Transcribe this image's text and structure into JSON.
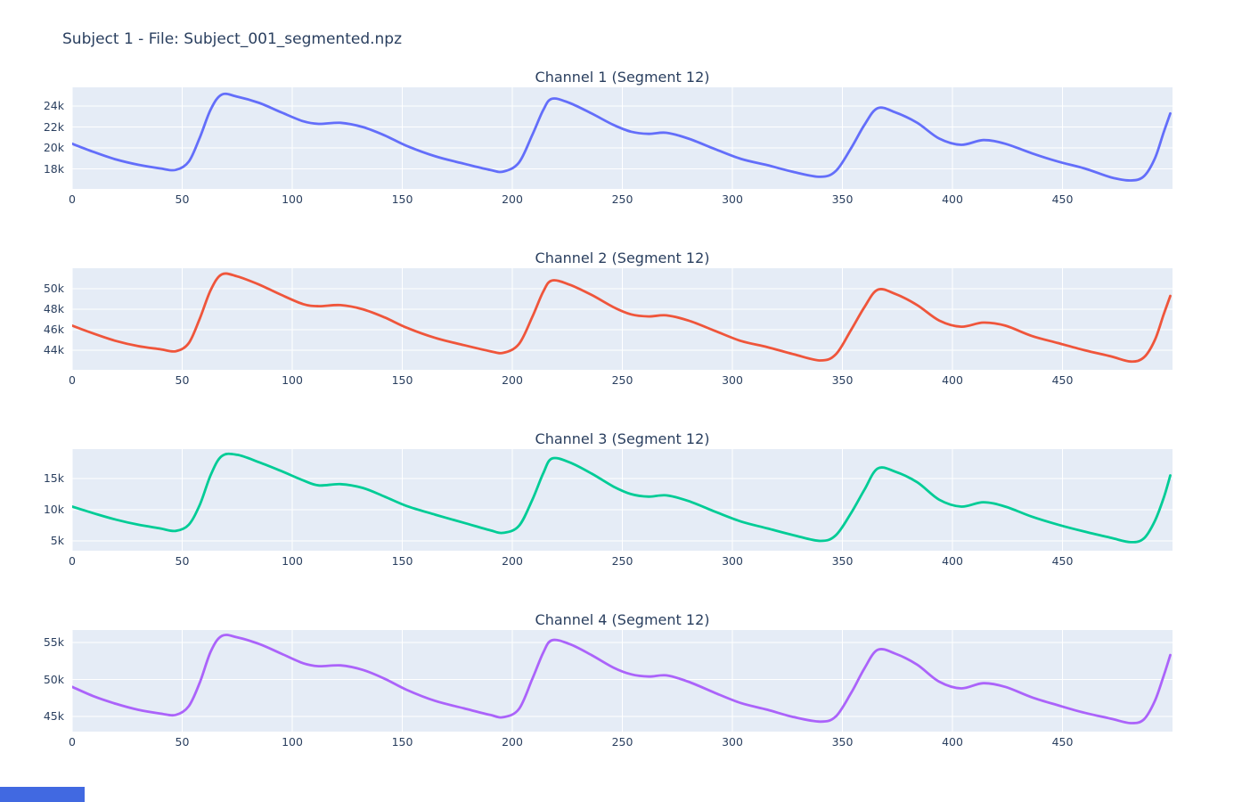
{
  "page": {
    "title": "Subject 1 - File: Subject_001_segmented.npz",
    "background": "#ffffff",
    "text_color": "#2a3f5f"
  },
  "theme": {
    "plot_bg": "#e5ecf6",
    "grid_color": "#ffffff",
    "tick_color": "#2a3f5f"
  },
  "status_bubble": {
    "color": "#4169e1"
  },
  "chart_data": [
    {
      "type": "line",
      "title": "Channel 1 (Segment 12)",
      "line_color": "#636efa",
      "x_range": [
        0,
        500
      ],
      "y_range": [
        16090,
        25790
      ],
      "x_tick_vals": [
        0,
        50,
        100,
        150,
        200,
        250,
        300,
        350,
        400,
        450
      ],
      "x_tick_labels": [
        "0",
        "50",
        "100",
        "150",
        "200",
        "250",
        "300",
        "350",
        "400",
        "450"
      ],
      "y_tick_vals": [
        18000,
        20000,
        22000,
        24000
      ],
      "y_tick_labels": [
        "18k",
        "20k",
        "22k",
        "24k"
      ],
      "x": [
        0,
        10,
        20,
        30,
        40,
        47,
        53,
        58,
        63,
        68,
        75,
        85,
        95,
        105,
        112,
        122,
        132,
        142,
        152,
        165,
        178,
        190,
        196,
        203,
        209,
        214,
        218,
        226,
        236,
        246,
        254,
        262,
        270,
        280,
        292,
        304,
        316,
        328,
        340,
        347,
        354,
        360,
        366,
        374,
        384,
        394,
        404,
        414,
        424,
        436,
        448,
        460,
        472,
        481,
        487,
        492,
        496,
        499
      ],
      "y": [
        20400,
        19600,
        18900,
        18400,
        18050,
        17900,
        18700,
        21000,
        23700,
        25100,
        24900,
        24300,
        23400,
        22550,
        22300,
        22400,
        22000,
        21200,
        20200,
        19200,
        18500,
        17900,
        17750,
        18600,
        21200,
        23600,
        24700,
        24300,
        23300,
        22200,
        21550,
        21350,
        21450,
        20900,
        19900,
        18950,
        18350,
        17700,
        17250,
        17800,
        20000,
        22200,
        23800,
        23400,
        22400,
        20900,
        20300,
        20750,
        20400,
        19500,
        18700,
        18050,
        17200,
        16900,
        17300,
        19000,
        21500,
        23300
      ]
    },
    {
      "type": "line",
      "title": "Channel 2 (Segment 12)",
      "line_color": "#ef553b",
      "x_range": [
        0,
        500
      ],
      "y_range": [
        42090,
        52000
      ],
      "x_tick_vals": [
        0,
        50,
        100,
        150,
        200,
        250,
        300,
        350,
        400,
        450
      ],
      "x_tick_labels": [
        "0",
        "50",
        "100",
        "150",
        "200",
        "250",
        "300",
        "350",
        "400",
        "450"
      ],
      "y_tick_vals": [
        44000,
        46000,
        48000,
        50000
      ],
      "y_tick_labels": [
        "44k",
        "46k",
        "48k",
        "50k"
      ],
      "x": [
        0,
        10,
        20,
        30,
        40,
        47,
        53,
        58,
        63,
        68,
        75,
        85,
        95,
        105,
        112,
        122,
        132,
        142,
        152,
        165,
        178,
        190,
        196,
        203,
        209,
        214,
        218,
        226,
        236,
        246,
        254,
        262,
        270,
        280,
        292,
        304,
        316,
        328,
        340,
        347,
        354,
        360,
        366,
        374,
        384,
        394,
        404,
        414,
        424,
        436,
        448,
        460,
        472,
        481,
        487,
        492,
        496,
        499
      ],
      "y": [
        46400,
        45600,
        44900,
        44400,
        44100,
        43900,
        44700,
        47100,
        49900,
        51400,
        51200,
        50400,
        49400,
        48500,
        48300,
        48400,
        48000,
        47200,
        46200,
        45200,
        44500,
        43900,
        43750,
        44600,
        47200,
        49700,
        50800,
        50400,
        49400,
        48200,
        47500,
        47300,
        47400,
        46900,
        45900,
        44900,
        44300,
        43600,
        43000,
        43600,
        46000,
        48200,
        49900,
        49500,
        48400,
        46900,
        46300,
        46700,
        46400,
        45400,
        44700,
        44000,
        43400,
        42900,
        43300,
        45000,
        47500,
        49300
      ]
    },
    {
      "type": "line",
      "title": "Channel 3 (Segment 12)",
      "line_color": "#00cc96",
      "x_range": [
        0,
        500
      ],
      "y_range": [
        3430,
        19710
      ],
      "x_tick_vals": [
        0,
        50,
        100,
        150,
        200,
        250,
        300,
        350,
        400,
        450
      ],
      "x_tick_labels": [
        "0",
        "50",
        "100",
        "150",
        "200",
        "250",
        "300",
        "350",
        "400",
        "450"
      ],
      "y_tick_vals": [
        5000,
        10000,
        15000
      ],
      "y_tick_labels": [
        "5k",
        "10k",
        "15k"
      ],
      "x": [
        0,
        10,
        20,
        30,
        40,
        47,
        53,
        58,
        63,
        68,
        75,
        85,
        95,
        105,
        112,
        122,
        132,
        142,
        152,
        165,
        178,
        190,
        196,
        203,
        209,
        214,
        218,
        226,
        236,
        246,
        254,
        262,
        270,
        280,
        292,
        304,
        316,
        328,
        340,
        347,
        354,
        360,
        366,
        374,
        384,
        394,
        404,
        414,
        424,
        436,
        448,
        460,
        472,
        481,
        487,
        492,
        496,
        499
      ],
      "y": [
        10500,
        9400,
        8400,
        7600,
        7000,
        6600,
        7600,
        10800,
        15600,
        18600,
        18800,
        17600,
        16200,
        14700,
        13900,
        14100,
        13500,
        12100,
        10600,
        9200,
        7900,
        6700,
        6300,
        7400,
        11500,
        15800,
        18200,
        17600,
        15800,
        13700,
        12500,
        12100,
        12300,
        11400,
        9700,
        8100,
        7000,
        5900,
        5000,
        5900,
        9500,
        13200,
        16600,
        16100,
        14400,
        11600,
        10500,
        11200,
        10500,
        8900,
        7600,
        6500,
        5500,
        4800,
        5400,
        8200,
        11900,
        15500
      ]
    },
    {
      "type": "line",
      "title": "Channel 4 (Segment 12)",
      "line_color": "#ab63fa",
      "x_range": [
        0,
        500
      ],
      "y_range": [
        42950,
        56690
      ],
      "x_tick_vals": [
        0,
        50,
        100,
        150,
        200,
        250,
        300,
        350,
        400,
        450
      ],
      "x_tick_labels": [
        "0",
        "50",
        "100",
        "150",
        "200",
        "250",
        "300",
        "350",
        "400",
        "450"
      ],
      "y_tick_vals": [
        45000,
        50000,
        55000
      ],
      "y_tick_labels": [
        "45k",
        "50k",
        "55k"
      ],
      "x": [
        0,
        10,
        20,
        30,
        40,
        47,
        53,
        58,
        63,
        68,
        75,
        85,
        95,
        105,
        112,
        122,
        132,
        142,
        152,
        165,
        178,
        190,
        196,
        203,
        209,
        214,
        218,
        226,
        236,
        246,
        254,
        262,
        270,
        280,
        292,
        304,
        316,
        328,
        340,
        347,
        354,
        360,
        366,
        374,
        384,
        394,
        404,
        414,
        424,
        436,
        448,
        460,
        472,
        481,
        487,
        492,
        496,
        499
      ],
      "y": [
        49000,
        47700,
        46700,
        45900,
        45400,
        45200,
        46400,
        49600,
        53800,
        55900,
        55700,
        54800,
        53500,
        52200,
        51800,
        51900,
        51300,
        50100,
        48600,
        47100,
        46100,
        45200,
        44900,
        46000,
        50000,
        53600,
        55300,
        54800,
        53300,
        51600,
        50700,
        50400,
        50550,
        49700,
        48200,
        46800,
        45900,
        44900,
        44300,
        45000,
        48200,
        51500,
        54000,
        53500,
        52000,
        49700,
        48800,
        49500,
        49000,
        47600,
        46500,
        45500,
        44700,
        44100,
        44600,
        47100,
        50500,
        53300
      ]
    }
  ]
}
